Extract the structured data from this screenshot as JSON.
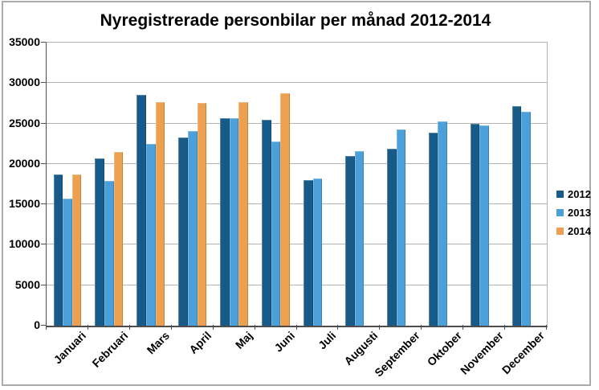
{
  "window": {
    "background": "#FFFFFF",
    "border_color": "#ABABAB"
  },
  "chart_data": {
    "type": "bar",
    "title": "Nyregistrerade personbilar per månad 2012-2014",
    "categories": [
      "Januari",
      "Februari",
      "Mars",
      "April",
      "Maj",
      "Juni",
      "Juli",
      "Augusti",
      "September",
      "Oktober",
      "November",
      "December"
    ],
    "series": [
      {
        "name": "2012",
        "color": "#185B89",
        "values": [
          18700,
          20700,
          28500,
          23300,
          25700,
          25500,
          18000,
          21000,
          21900,
          23900,
          25000,
          27100
        ]
      },
      {
        "name": "2013",
        "color": "#4BA0D9",
        "values": [
          15700,
          17900,
          22500,
          24100,
          25700,
          22800,
          18200,
          21600,
          24300,
          25300,
          24800,
          26500
        ]
      },
      {
        "name": "2014",
        "color": "#EDA04F",
        "values": [
          18700,
          21500,
          27600,
          27500,
          27600,
          28700,
          null,
          null,
          null,
          null,
          null,
          null
        ]
      }
    ],
    "xlabel": "",
    "ylabel": "",
    "ylim": [
      0,
      35000
    ],
    "ytick_step": 5000,
    "ytick_labels": [
      "0",
      "5000",
      "10000",
      "15000",
      "20000",
      "25000",
      "30000",
      "35000"
    ],
    "grid": "horizontal",
    "gridline_color": "#B3B3B3",
    "axis_color": "#4D4D4D",
    "legend_position": "right"
  }
}
